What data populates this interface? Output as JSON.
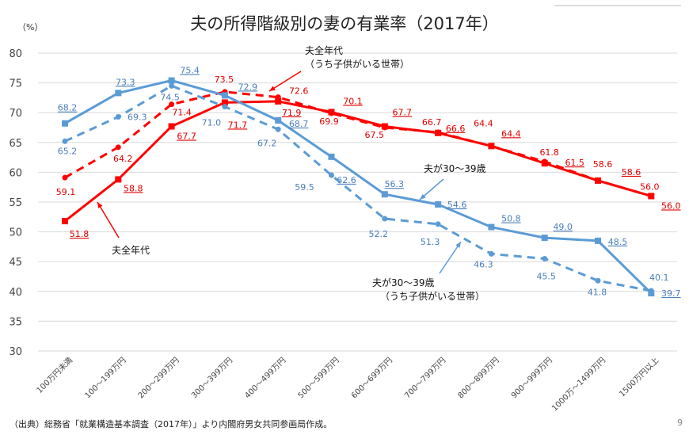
{
  "title": "夫の所得階級別の妻の有業率（2017年）",
  "source": "（出典）総務省「就業構造基本調査（2017年）」より内閣府男女共同参画局作成。",
  "page_number": "9",
  "chart_data": {
    "type": "line",
    "title": "夫の所得階級別の妻の有業率（2017年）",
    "ylabel": "（%）",
    "ylim": [
      30,
      80
    ],
    "yticks": [
      30,
      35,
      40,
      45,
      50,
      55,
      60,
      65,
      70,
      75,
      80
    ],
    "grid": true,
    "categories": [
      "100万円未満",
      "100～199万円",
      "200～299万円",
      "300～399万円",
      "400～499万円",
      "500～599万円",
      "600～699万円",
      "700～799万円",
      "800～899万円",
      "900～999万円",
      "1000万～1499万円",
      "1500万円以上"
    ],
    "series": [
      {
        "name": "夫全年代",
        "color": "#ff0000",
        "dashed": false,
        "values": [
          51.8,
          58.8,
          67.7,
          71.7,
          71.9,
          70.1,
          67.7,
          66.6,
          64.4,
          61.5,
          58.6,
          56.0
        ]
      },
      {
        "name": "夫全年代（うち子供がいる世帯）",
        "color": "#ff0000",
        "dashed": true,
        "values": [
          59.1,
          64.2,
          71.4,
          73.5,
          72.6,
          69.9,
          67.5,
          66.7,
          64.4,
          61.8,
          58.6,
          56.0
        ]
      },
      {
        "name": "夫が30～39歳",
        "color": "#5b9bd5",
        "dashed": false,
        "values": [
          68.2,
          73.3,
          75.4,
          72.9,
          68.7,
          62.6,
          56.3,
          54.6,
          50.8,
          49.0,
          48.5,
          39.7
        ]
      },
      {
        "name": "夫が30～39歳（うち子供がいる世帯）",
        "color": "#5b9bd5",
        "dashed": true,
        "values": [
          65.2,
          69.3,
          74.5,
          71.0,
          67.2,
          59.5,
          52.2,
          51.3,
          46.3,
          45.5,
          41.8,
          40.1
        ]
      }
    ],
    "annotations": [
      {
        "lines": [
          "夫全年代"
        ]
      },
      {
        "lines": [
          "夫全年代",
          "（うち子供がいる世帯）"
        ]
      },
      {
        "lines": [
          "夫が30～39歳"
        ]
      },
      {
        "lines": [
          "夫が30～39歳",
          "（うち子供がいる世帯）"
        ]
      }
    ]
  }
}
